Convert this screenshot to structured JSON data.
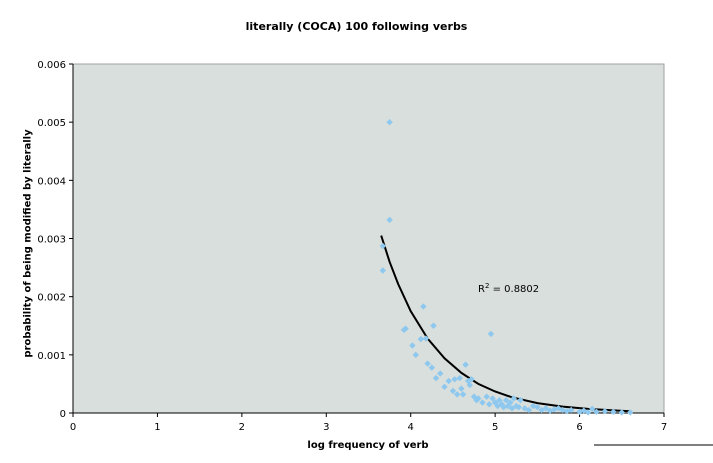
{
  "chart_data": {
    "type": "scatter",
    "title": "literally (COCA) 100 following verbs",
    "xlabel": "log frequency of verb",
    "ylabel": "probability of being modified by literally",
    "xlim": [
      0,
      7
    ],
    "ylim": [
      0,
      0.006
    ],
    "x_ticks": [
      "0",
      "1",
      "2",
      "3",
      "4",
      "5",
      "6",
      "7"
    ],
    "y_ticks": [
      "0",
      "0.001",
      "0.002",
      "0.003",
      "0.004",
      "0.005",
      "0.006"
    ],
    "grid": false,
    "legend": "none",
    "plot_background": "#d9dfdc",
    "marker_color": "#8ec8ee",
    "trendline_color": "#000000",
    "annotation": {
      "r2_label": "R",
      "r2_sup": "2",
      "r2_value": " = 0.8802"
    },
    "trendline": {
      "type": "exponential-decay",
      "points": [
        [
          3.65,
          0.00305
        ],
        [
          3.75,
          0.0026
        ],
        [
          3.85,
          0.00222
        ],
        [
          4.0,
          0.00175
        ],
        [
          4.2,
          0.00128
        ],
        [
          4.4,
          0.00094
        ],
        [
          4.6,
          0.00069
        ],
        [
          4.8,
          0.0005
        ],
        [
          5.0,
          0.00037
        ],
        [
          5.2,
          0.00027
        ],
        [
          5.5,
          0.00017
        ],
        [
          5.8,
          0.00011
        ],
        [
          6.1,
          7e-05
        ],
        [
          6.4,
          4.5e-05
        ],
        [
          6.6,
          3e-05
        ]
      ]
    },
    "points": [
      [
        3.75,
        0.005
      ],
      [
        3.75,
        0.00332
      ],
      [
        3.67,
        0.00287
      ],
      [
        3.67,
        0.00245
      ],
      [
        3.92,
        0.00143
      ],
      [
        3.94,
        0.00145
      ],
      [
        4.02,
        0.00116
      ],
      [
        4.06,
        0.001
      ],
      [
        4.12,
        0.00127
      ],
      [
        4.15,
        0.00183
      ],
      [
        4.18,
        0.00128
      ],
      [
        4.2,
        0.00085
      ],
      [
        4.25,
        0.00078
      ],
      [
        4.27,
        0.0015
      ],
      [
        4.3,
        0.0006
      ],
      [
        4.35,
        0.00068
      ],
      [
        4.4,
        0.00045
      ],
      [
        4.45,
        0.00055
      ],
      [
        4.5,
        0.00038
      ],
      [
        4.52,
        0.00058
      ],
      [
        4.55,
        0.00032
      ],
      [
        4.58,
        0.0006
      ],
      [
        4.6,
        0.00042
      ],
      [
        4.62,
        0.00032
      ],
      [
        4.65,
        0.00083
      ],
      [
        4.68,
        0.00055
      ],
      [
        4.7,
        0.00048
      ],
      [
        4.72,
        0.00058
      ],
      [
        4.75,
        0.00028
      ],
      [
        4.78,
        0.00022
      ],
      [
        4.8,
        0.00025
      ],
      [
        4.85,
        0.00018
      ],
      [
        4.9,
        0.00028
      ],
      [
        4.93,
        0.00015
      ],
      [
        4.95,
        0.00136
      ],
      [
        4.97,
        0.00025
      ],
      [
        5.0,
        0.00018
      ],
      [
        5.03,
        0.00012
      ],
      [
        5.05,
        0.00022
      ],
      [
        5.08,
        0.00015
      ],
      [
        5.1,
        0.0001
      ],
      [
        5.13,
        0.00022
      ],
      [
        5.15,
        0.00012
      ],
      [
        5.18,
        0.00018
      ],
      [
        5.2,
        8e-05
      ],
      [
        5.22,
        0.00025
      ],
      [
        5.25,
        0.00012
      ],
      [
        5.28,
        0.0001
      ],
      [
        5.3,
        0.00022
      ],
      [
        5.35,
        8e-05
      ],
      [
        5.4,
        5e-05
      ],
      [
        5.45,
        0.00012
      ],
      [
        5.5,
        0.0001
      ],
      [
        5.55,
        5e-05
      ],
      [
        5.6,
        8e-05
      ],
      [
        5.65,
        4e-05
      ],
      [
        5.7,
        6e-05
      ],
      [
        5.75,
        8e-05
      ],
      [
        5.8,
        5e-05
      ],
      [
        5.85,
        3e-05
      ],
      [
        5.9,
        5e-05
      ],
      [
        6.0,
        2e-05
      ],
      [
        6.05,
        4e-05
      ],
      [
        6.1,
        1e-05
      ],
      [
        6.15,
        7e-05
      ],
      [
        6.2,
        2e-05
      ],
      [
        6.3,
        3e-05
      ],
      [
        6.4,
        2e-05
      ],
      [
        6.5,
        1e-05
      ],
      [
        6.6,
        1e-05
      ]
    ]
  }
}
